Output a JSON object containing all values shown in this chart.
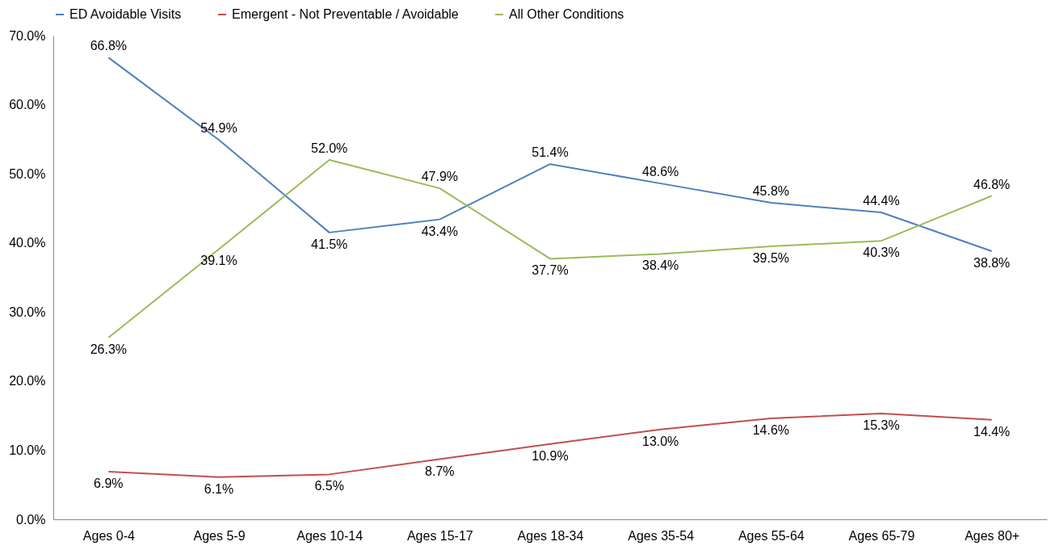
{
  "chart_data": {
    "type": "line",
    "categories": [
      "Ages 0-4",
      "Ages 5-9",
      "Ages 10-14",
      "Ages 15-17",
      "Ages 18-34",
      "Ages 35-54",
      "Ages 55-64",
      "Ages 65-79",
      "Ages 80+"
    ],
    "series": [
      {
        "name": "ED Avoidable Visits",
        "color": "#4f81bd",
        "values": [
          66.8,
          54.9,
          41.5,
          43.4,
          51.4,
          48.6,
          45.8,
          44.4,
          38.8
        ],
        "value_labels": [
          "66.8%",
          "54.9%",
          "41.5%",
          "43.4%",
          "51.4%",
          "48.6%",
          "45.8%",
          "44.4%",
          "38.8%"
        ]
      },
      {
        "name": "Emergent - Not Preventable / Avoidable",
        "color": "#c0504d",
        "values": [
          6.9,
          6.1,
          6.5,
          8.7,
          10.9,
          13.0,
          14.6,
          15.3,
          14.4
        ],
        "value_labels": [
          "6.9%",
          "6.1%",
          "6.5%",
          "8.7%",
          "10.9%",
          "13.0%",
          "14.6%",
          "15.3%",
          "14.4%"
        ]
      },
      {
        "name": "All Other Conditions",
        "color": "#9bbb59",
        "values": [
          26.3,
          39.1,
          52.0,
          47.9,
          37.7,
          38.4,
          39.5,
          40.3,
          46.8
        ],
        "value_labels": [
          "26.3%",
          "39.1%",
          "52.0%",
          "47.9%",
          "37.7%",
          "38.4%",
          "39.5%",
          "40.3%",
          "46.8%"
        ]
      }
    ],
    "ylim": [
      0,
      70
    ],
    "yticks": [
      {
        "value": 0,
        "label": "0.0%"
      },
      {
        "value": 10,
        "label": "10.0%"
      },
      {
        "value": 20,
        "label": "20.0%"
      },
      {
        "value": 30,
        "label": "30.0%"
      },
      {
        "value": 40,
        "label": "40.0%"
      },
      {
        "value": 50,
        "label": "50.0%"
      },
      {
        "value": 60,
        "label": "60.0%"
      },
      {
        "value": 70,
        "label": "70.0%"
      }
    ],
    "grid": false,
    "legend": "top",
    "marker": "none",
    "line_style": "solid"
  }
}
